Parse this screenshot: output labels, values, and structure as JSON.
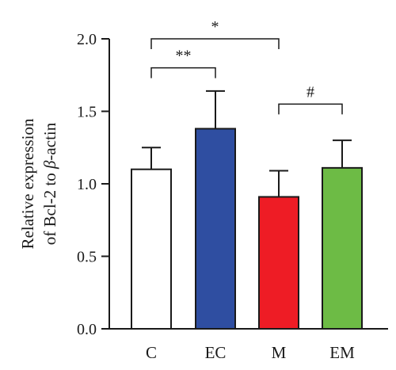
{
  "chart_data": {
    "type": "bar",
    "categories": [
      "C",
      "EC",
      "M",
      "EM"
    ],
    "values": [
      1.1,
      1.38,
      0.91,
      1.11
    ],
    "errors": [
      0.15,
      0.26,
      0.18,
      0.19
    ],
    "colors": [
      "#ffffff",
      "#2f4ea1",
      "#ee1c25",
      "#6dbb45"
    ],
    "ylabel_line1": "Relative expression",
    "ylabel_line2_prefix": "of Bcl-2 to ",
    "ylabel_line2_greek": "β",
    "ylabel_line2_suffix": "-actin",
    "ylim": [
      0,
      2.0
    ],
    "yticks": [
      "0.0",
      "0.5",
      "1.0",
      "1.5",
      "2.0"
    ],
    "significance": [
      {
        "from": "C",
        "to": "M",
        "label": "*",
        "level": 2.0
      },
      {
        "from": "C",
        "to": "EC",
        "label": "**",
        "level": 1.8
      },
      {
        "from": "M",
        "to": "EM",
        "label": "#",
        "level": 1.55
      }
    ]
  }
}
